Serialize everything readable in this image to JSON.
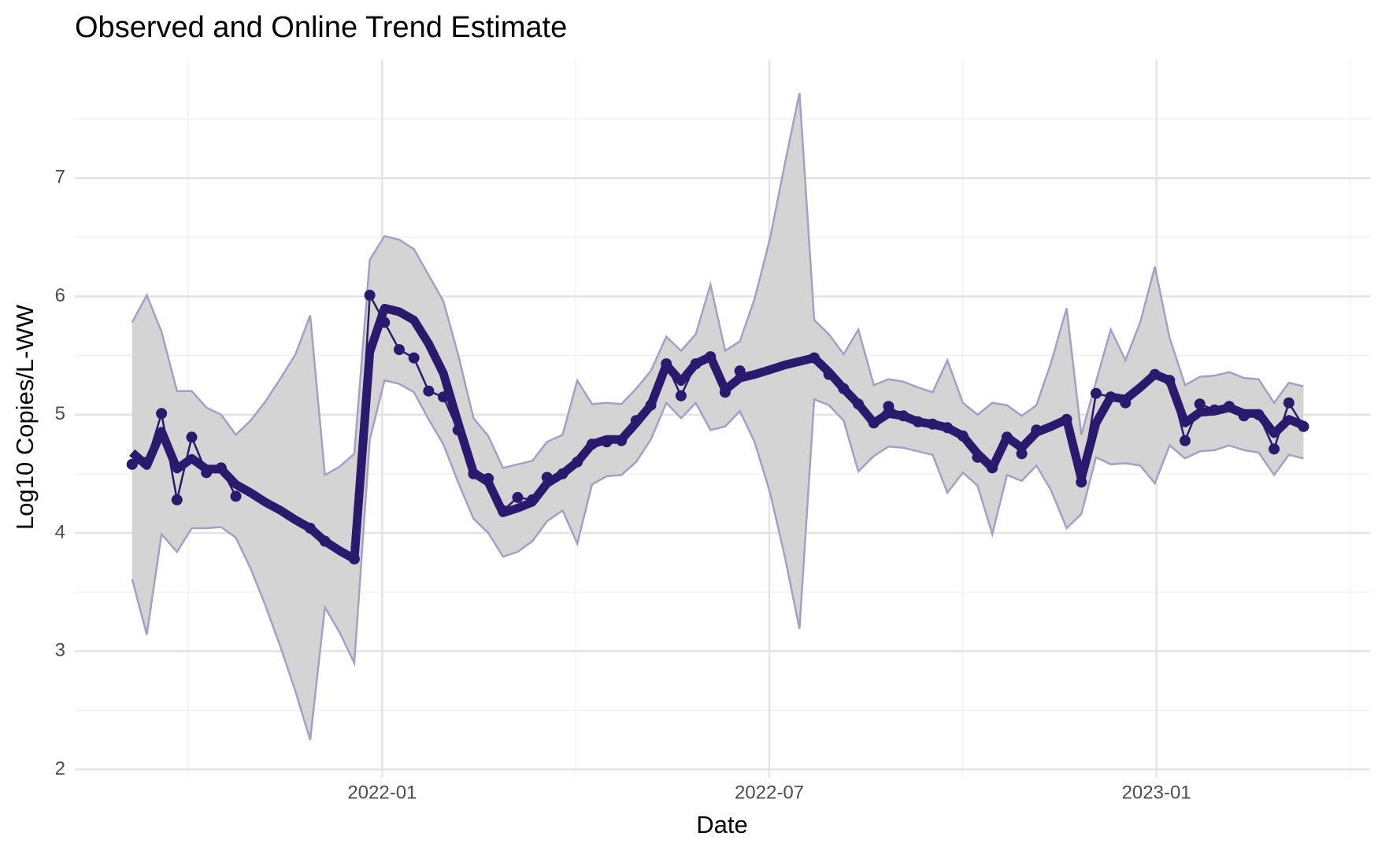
{
  "chart_data": {
    "type": "line",
    "title": "Observed and Online Trend Estimate",
    "xlabel": "Date",
    "ylabel": "Log10 Copies/L-WW",
    "xlim": [
      2021.603,
      2023.276
    ],
    "ylim": [
      1.93,
      8.0
    ],
    "xticks": [
      {
        "value": 2022.0,
        "label": "2022-01"
      },
      {
        "value": 2022.5,
        "label": "2022-07"
      },
      {
        "value": 2023.0,
        "label": "2023-01"
      }
    ],
    "xminorticks": [
      2021.75,
      2022.25,
      2022.75,
      2023.25
    ],
    "yticks": [
      2,
      3,
      4,
      5,
      6,
      7
    ],
    "yminorticks": [
      2.5,
      3.5,
      4.5,
      5.5,
      6.5,
      7.5
    ],
    "grid": true,
    "x": [
      2021.677,
      2021.696,
      2021.715,
      2021.735,
      2021.754,
      2021.773,
      2021.792,
      2021.811,
      2021.83,
      2021.849,
      2021.869,
      2021.888,
      2021.907,
      2021.926,
      2021.945,
      2021.964,
      2021.984,
      2022.003,
      2022.022,
      2022.041,
      2022.06,
      2022.079,
      2022.098,
      2022.118,
      2022.137,
      2022.156,
      2022.175,
      2022.194,
      2022.213,
      2022.233,
      2022.252,
      2022.271,
      2022.29,
      2022.309,
      2022.328,
      2022.347,
      2022.367,
      2022.386,
      2022.405,
      2022.424,
      2022.443,
      2022.462,
      2022.481,
      2022.501,
      2022.52,
      2022.539,
      2022.558,
      2022.577,
      2022.596,
      2022.615,
      2022.635,
      2022.654,
      2022.673,
      2022.692,
      2022.711,
      2022.73,
      2022.75,
      2022.769,
      2022.788,
      2022.807,
      2022.826,
      2022.845,
      2022.864,
      2022.884,
      2022.903,
      2022.922,
      2022.941,
      2022.96,
      2022.979,
      2022.998,
      2023.017,
      2023.037,
      2023.056,
      2023.075,
      2023.094,
      2023.113,
      2023.132,
      2023.152,
      2023.171,
      2023.19
    ],
    "band": {
      "fill": "#d4d4d4",
      "edge": "#a59fc7",
      "upper": [
        5.78,
        6.01,
        5.7,
        5.2,
        5.2,
        5.06,
        5.0,
        4.83,
        4.95,
        5.11,
        5.31,
        5.51,
        5.84,
        4.49,
        4.56,
        4.67,
        6.31,
        6.51,
        6.48,
        6.4,
        6.18,
        5.96,
        5.51,
        4.97,
        4.82,
        4.55,
        4.58,
        4.61,
        4.77,
        4.83,
        5.29,
        5.09,
        5.1,
        5.09,
        5.22,
        5.37,
        5.66,
        5.54,
        5.68,
        6.1,
        5.54,
        5.62,
        5.98,
        6.49,
        7.12,
        7.72,
        5.8,
        5.68,
        5.51,
        5.72,
        5.25,
        5.3,
        5.28,
        5.23,
        5.19,
        5.46,
        5.1,
        5.0,
        5.1,
        5.08,
        4.99,
        5.08,
        5.44,
        5.9,
        4.83,
        5.28,
        5.72,
        5.46,
        5.78,
        6.25,
        5.65,
        5.25,
        5.32,
        5.33,
        5.36,
        5.31,
        5.3,
        5.1,
        5.27,
        5.24
      ],
      "lower": [
        3.61,
        3.14,
        3.99,
        3.84,
        4.04,
        4.04,
        4.05,
        3.96,
        3.7,
        3.39,
        3.03,
        2.66,
        2.25,
        3.37,
        3.16,
        2.9,
        4.79,
        5.29,
        5.26,
        5.19,
        4.96,
        4.75,
        4.43,
        4.12,
        4.0,
        3.8,
        3.84,
        3.93,
        4.1,
        4.19,
        3.91,
        4.41,
        4.48,
        4.49,
        4.6,
        4.79,
        5.1,
        4.97,
        5.1,
        4.87,
        4.9,
        5.03,
        4.77,
        4.34,
        3.8,
        3.19,
        5.13,
        5.08,
        4.95,
        4.52,
        4.65,
        4.73,
        4.72,
        4.69,
        4.66,
        4.34,
        4.51,
        4.4,
        3.99,
        4.49,
        4.44,
        4.57,
        4.36,
        4.04,
        4.16,
        4.64,
        4.58,
        4.59,
        4.57,
        4.42,
        4.74,
        4.63,
        4.69,
        4.7,
        4.74,
        4.7,
        4.68,
        4.49,
        4.66,
        4.63
      ]
    },
    "observed": {
      "color": "#2a1a6e",
      "values": [
        4.58,
        4.6,
        5.01,
        4.28,
        4.81,
        4.51,
        4.55,
        4.31,
        null,
        null,
        null,
        null,
        4.04,
        3.93,
        null,
        3.78,
        6.01,
        5.78,
        5.55,
        5.48,
        5.2,
        5.15,
        4.87,
        4.5,
        4.46,
        4.19,
        4.3,
        4.28,
        4.47,
        4.5,
        4.6,
        4.75,
        4.77,
        4.78,
        4.95,
        5.08,
        5.43,
        5.16,
        5.43,
        5.49,
        5.19,
        5.37,
        null,
        null,
        null,
        null,
        5.48,
        5.34,
        5.22,
        5.09,
        4.93,
        5.07,
        4.99,
        4.94,
        4.92,
        4.89,
        4.82,
        4.64,
        4.55,
        4.81,
        4.67,
        4.87,
        null,
        4.96,
        4.43,
        5.18,
        5.15,
        5.1,
        null,
        5.34,
        5.29,
        4.78,
        5.09,
        5.04,
        5.07,
        4.99,
        5.0,
        4.71,
        5.1,
        4.9
      ]
    },
    "trend": {
      "color": "#2a1a6e",
      "values": [
        4.68,
        4.57,
        4.86,
        4.54,
        4.63,
        4.54,
        4.54,
        4.41,
        4.34,
        4.26,
        4.19,
        4.11,
        4.04,
        3.93,
        3.85,
        3.78,
        5.53,
        5.9,
        5.87,
        5.8,
        5.6,
        5.35,
        4.93,
        4.51,
        4.43,
        4.17,
        4.21,
        4.26,
        4.42,
        4.5,
        4.6,
        4.75,
        4.79,
        4.79,
        4.93,
        5.08,
        5.42,
        5.28,
        5.43,
        5.49,
        5.21,
        5.31,
        5.34,
        5.38,
        5.42,
        5.45,
        5.48,
        5.36,
        5.22,
        5.09,
        4.93,
        5.01,
        4.99,
        4.94,
        4.92,
        4.89,
        4.82,
        4.67,
        4.55,
        4.81,
        4.72,
        4.85,
        4.9,
        4.96,
        4.46,
        4.93,
        5.15,
        5.13,
        5.23,
        5.34,
        5.29,
        4.93,
        5.02,
        5.03,
        5.06,
        5.01,
        5.01,
        4.84,
        4.96,
        4.91
      ]
    }
  }
}
